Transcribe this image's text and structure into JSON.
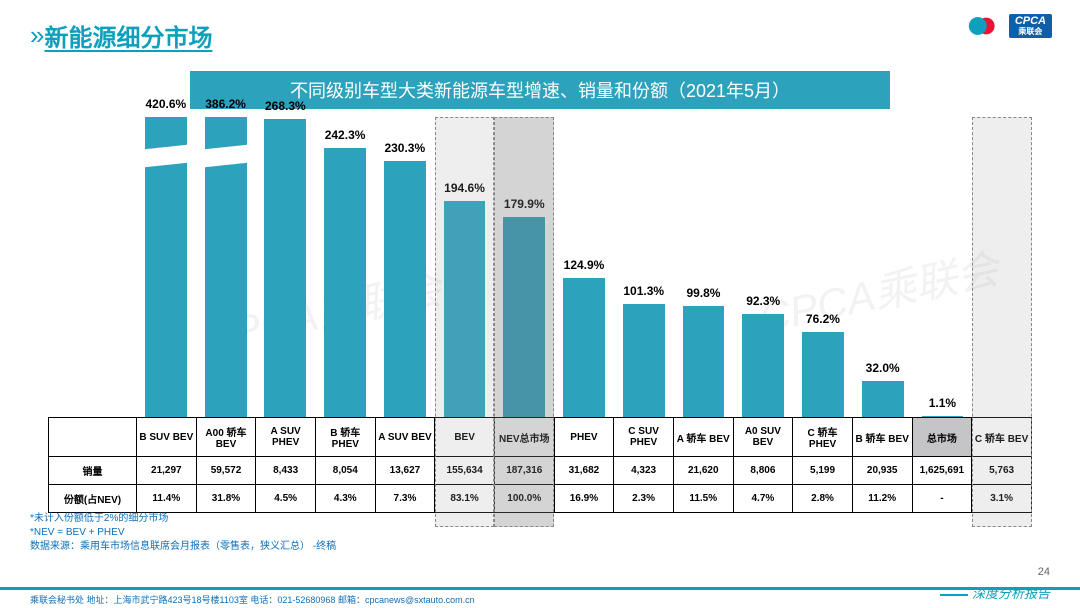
{
  "header": {
    "title": "新能源细分市场",
    "logo_cpca_top": "CPCA",
    "logo_cpca_sub": "乘联会"
  },
  "subtitle": "不同级别车型大类新能源车型增速、销量和份额（2021年5月）",
  "chart": {
    "type": "bar",
    "bar_color": "#2da2bd",
    "bg_color": "#ffffff",
    "label_fontsize": 12,
    "max_display_pct": 270,
    "break_bars": [
      0,
      1
    ],
    "highlight_cols": [
      5,
      6,
      14
    ],
    "categories": [
      "B SUV BEV",
      "A00 轿车 BEV",
      "A SUV PHEV",
      "B 轿车 PHEV",
      "A SUV BEV",
      "BEV",
      "NEV总市场",
      "PHEV",
      "C SUV PHEV",
      "A 轿车 BEV",
      "A0 SUV BEV",
      "C 轿车 PHEV",
      "B 轿车 BEV",
      "总市场",
      "C 轿车 BEV"
    ],
    "values_label": [
      "420.6%",
      "386.2%",
      "268.3%",
      "242.3%",
      "230.3%",
      "194.6%",
      "179.9%",
      "124.9%",
      "101.3%",
      "99.8%",
      "92.3%",
      "76.2%",
      "32.0%",
      "1.1%",
      ""
    ],
    "values_num": [
      420.6,
      386.2,
      268.3,
      242.3,
      230.3,
      194.6,
      179.9,
      124.9,
      101.3,
      99.8,
      92.3,
      76.2,
      32.0,
      1.1,
      null
    ]
  },
  "table": {
    "row_headers": [
      "",
      "销量",
      "份额(占NEV)"
    ],
    "rows": [
      [
        "B SUV BEV",
        "A00 轿车 BEV",
        "A SUV PHEV",
        "B 轿车 PHEV",
        "A SUV BEV",
        "BEV",
        "NEV总市场",
        "PHEV",
        "C SUV PHEV",
        "A 轿车 BEV",
        "A0 SUV BEV",
        "C 轿车 PHEV",
        "B 轿车 BEV",
        "总市场",
        "C 轿车 BEV"
      ],
      [
        "21,297",
        "59,572",
        "8,433",
        "8,054",
        "13,627",
        "155,634",
        "187,316",
        "31,682",
        "4,323",
        "21,620",
        "8,806",
        "5,199",
        "20,935",
        "1,625,691",
        "5,763"
      ],
      [
        "11.4%",
        "31.8%",
        "4.5%",
        "4.3%",
        "7.3%",
        "83.1%",
        "100.0%",
        "16.9%",
        "2.3%",
        "11.5%",
        "4.7%",
        "2.8%",
        "11.2%",
        "-",
        "3.1%"
      ]
    ],
    "shaded_col": 13
  },
  "footnotes": [
    "*未计入份额低于2%的细分市场",
    "*NEV = BEV + PHEV",
    "数据来源：乘用车市场信息联席会月报表（零售表，狭义汇总）  -终稿"
  ],
  "footer": {
    "left": "乘联会秘书处   地址：上海市武宁路423号18号楼1103室    电话：021-52680968    邮箱：cpcanews@sxtauto.com.cn",
    "right": "深度分析报告",
    "page": "24"
  },
  "watermark": "CPCA乘联会"
}
